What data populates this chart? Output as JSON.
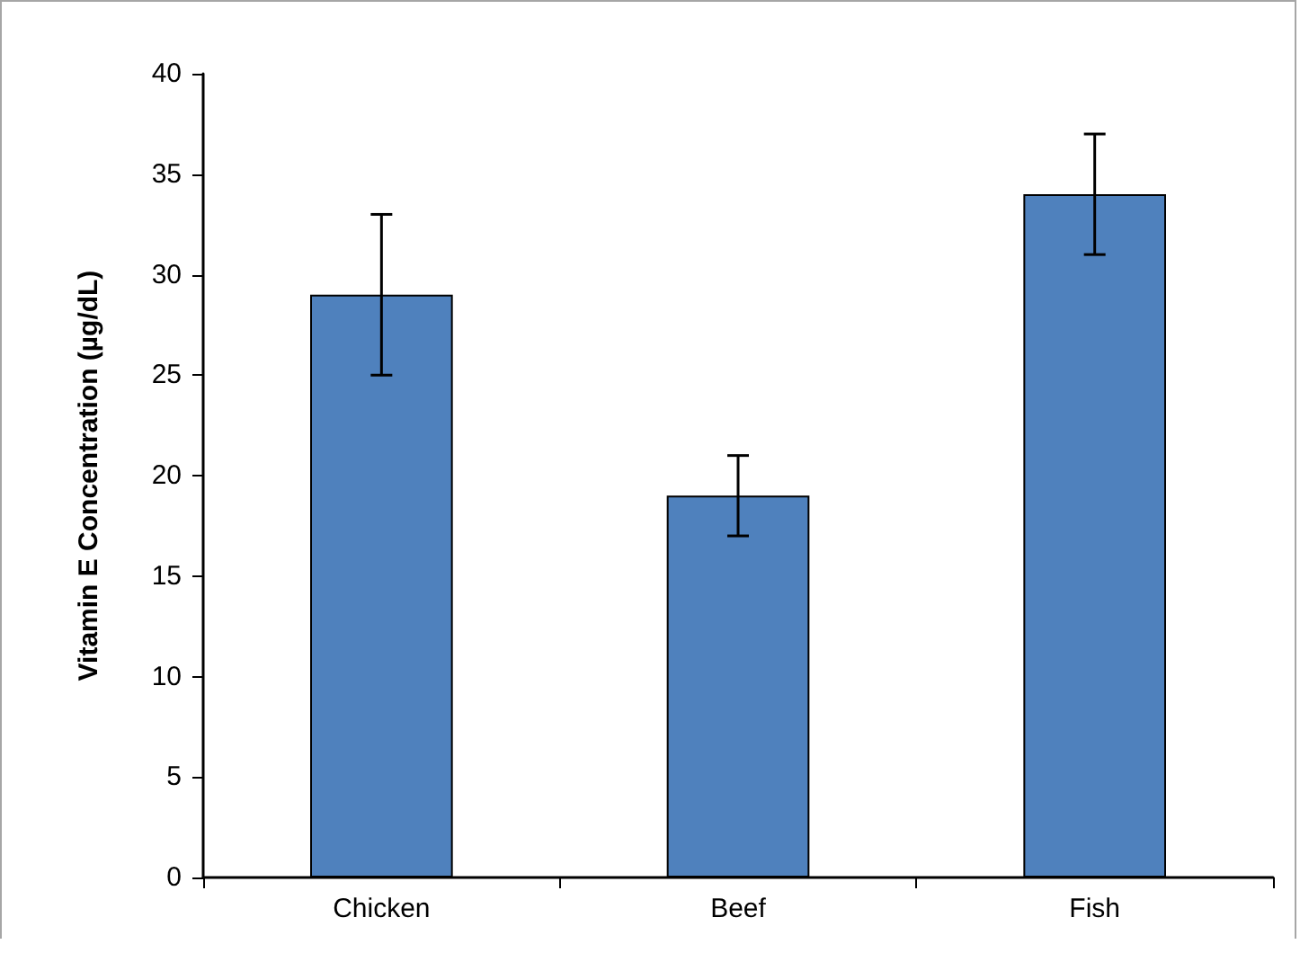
{
  "chart_data": {
    "type": "bar",
    "ylabel": "Vitamin E Concentration (µg/dL)",
    "categories": [
      "Chicken",
      "Beef",
      "Fish"
    ],
    "values": [
      29,
      19,
      34
    ],
    "errors": [
      4,
      2,
      3
    ],
    "color": "#4f81bd",
    "ylim": [
      0,
      40
    ],
    "yticks": [
      0,
      5,
      10,
      15,
      20,
      25,
      30,
      35,
      40
    ]
  }
}
